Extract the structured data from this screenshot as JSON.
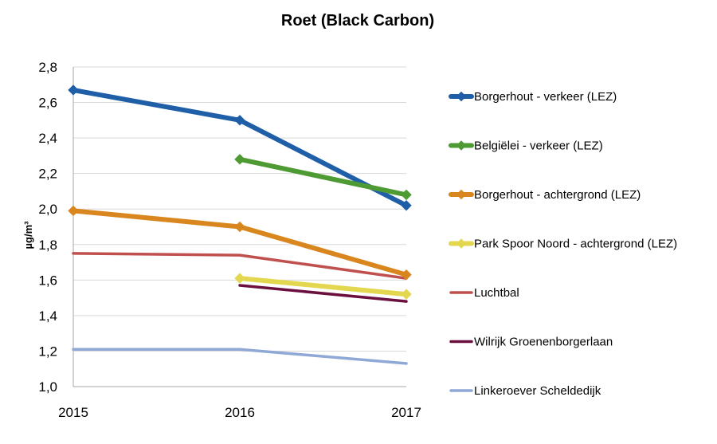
{
  "chart_data": {
    "type": "line",
    "title": "Roet (Black Carbon)",
    "xlabel": "",
    "ylabel": "µg/m³",
    "x": [
      2015,
      2016,
      2017
    ],
    "x_tick_labels": [
      "2015",
      "2016",
      "2017"
    ],
    "ylim": [
      1.0,
      2.8
    ],
    "y_ticks": [
      1.0,
      1.2,
      1.4,
      1.6,
      1.8,
      2.0,
      2.2,
      2.4,
      2.6,
      2.8
    ],
    "y_tick_labels": [
      "1,0",
      "1,2",
      "1,4",
      "1,6",
      "1,8",
      "2,0",
      "2,2",
      "2,4",
      "2,6",
      "2,8"
    ],
    "grid": "horizontal",
    "legend_position": "right",
    "series": [
      {
        "name": "Borgerhout - verkeer (LEZ)",
        "values": [
          2.67,
          2.5,
          2.02
        ],
        "color": "#1f5fa8",
        "marker": "diamond",
        "thick": true
      },
      {
        "name": "Belgiëlei - verkeer (LEZ)",
        "values": [
          null,
          2.28,
          2.08
        ],
        "color": "#4e9a33",
        "marker": "diamond",
        "thick": true
      },
      {
        "name": "Borgerhout - achtergrond (LEZ)",
        "values": [
          1.99,
          1.9,
          1.63
        ],
        "color": "#d9861e",
        "marker": "diamond",
        "thick": true
      },
      {
        "name": "Park Spoor Noord - achtergrond (LEZ)",
        "values": [
          null,
          1.61,
          1.52
        ],
        "color": "#e3d750",
        "marker": "diamond",
        "thick": true
      },
      {
        "name": "Luchtbal",
        "values": [
          1.75,
          1.74,
          1.61
        ],
        "color": "#c0504d",
        "marker": "none",
        "thick": false
      },
      {
        "name": "Wilrijk Groenenborgerlaan",
        "values": [
          null,
          1.57,
          1.48
        ],
        "color": "#6b0f3e",
        "marker": "none",
        "thick": false
      },
      {
        "name": "Linkeroever Scheldedijk",
        "values": [
          1.21,
          1.21,
          1.13
        ],
        "color": "#8fa8d6",
        "marker": "none",
        "thick": false
      }
    ]
  }
}
